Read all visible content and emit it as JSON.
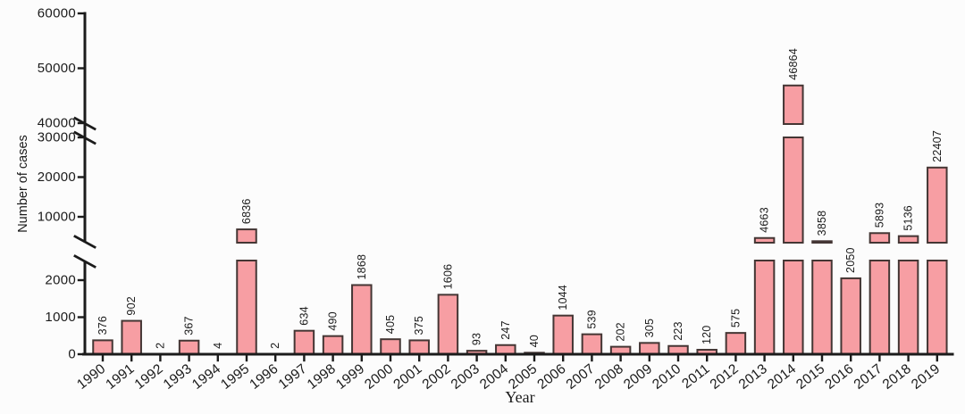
{
  "chart_data": {
    "type": "bar",
    "title": "",
    "xlabel": "Year",
    "ylabel": "Number of cases",
    "categories": [
      "1990",
      "1991",
      "1992",
      "1993",
      "1994",
      "1995",
      "1996",
      "1997",
      "1998",
      "1999",
      "2000",
      "2001",
      "2002",
      "2003",
      "2004",
      "2005",
      "2006",
      "2007",
      "2008",
      "2009",
      "2010",
      "2011",
      "2012",
      "2013",
      "2014",
      "2015",
      "2016",
      "2017",
      "2018",
      "2019"
    ],
    "values": [
      376,
      902,
      2,
      367,
      4,
      6836,
      2,
      634,
      490,
      1868,
      405,
      375,
      1606,
      93,
      247,
      40,
      1044,
      539,
      202,
      305,
      223,
      120,
      575,
      4663,
      46864,
      3858,
      2050,
      5893,
      5136,
      22407
    ],
    "bar_labels": [
      "376",
      "902",
      "2",
      "367",
      "4",
      "6836",
      "2",
      "634",
      "490",
      "1868",
      "405",
      "375",
      "1606",
      "93",
      "247",
      "40",
      "1044",
      "539",
      "202",
      "305",
      "223",
      "120",
      "575",
      "4663",
      "46864",
      "3858",
      "2050",
      "5893",
      "5136",
      "22407"
    ],
    "y_ticks": [
      0,
      1000,
      2000,
      10000,
      20000,
      30000,
      40000,
      50000,
      60000
    ],
    "y_tick_labels": [
      "0",
      "1000",
      "2000",
      "10000",
      "20000",
      "30000",
      "40000",
      "50000",
      "60000"
    ],
    "ylim": [
      0,
      60000
    ],
    "axis_breaks": [
      {
        "between_values": [
          2400,
          3300
        ]
      },
      {
        "between_values": [
          30000,
          40000
        ]
      }
    ],
    "grid": false,
    "legend": null,
    "colors": {
      "bar_fill": "#F79EA3",
      "bar_border": "#443634",
      "axis": "#1b1b1b",
      "text": "#1b1b1b",
      "background": "#fcfcfc"
    }
  }
}
